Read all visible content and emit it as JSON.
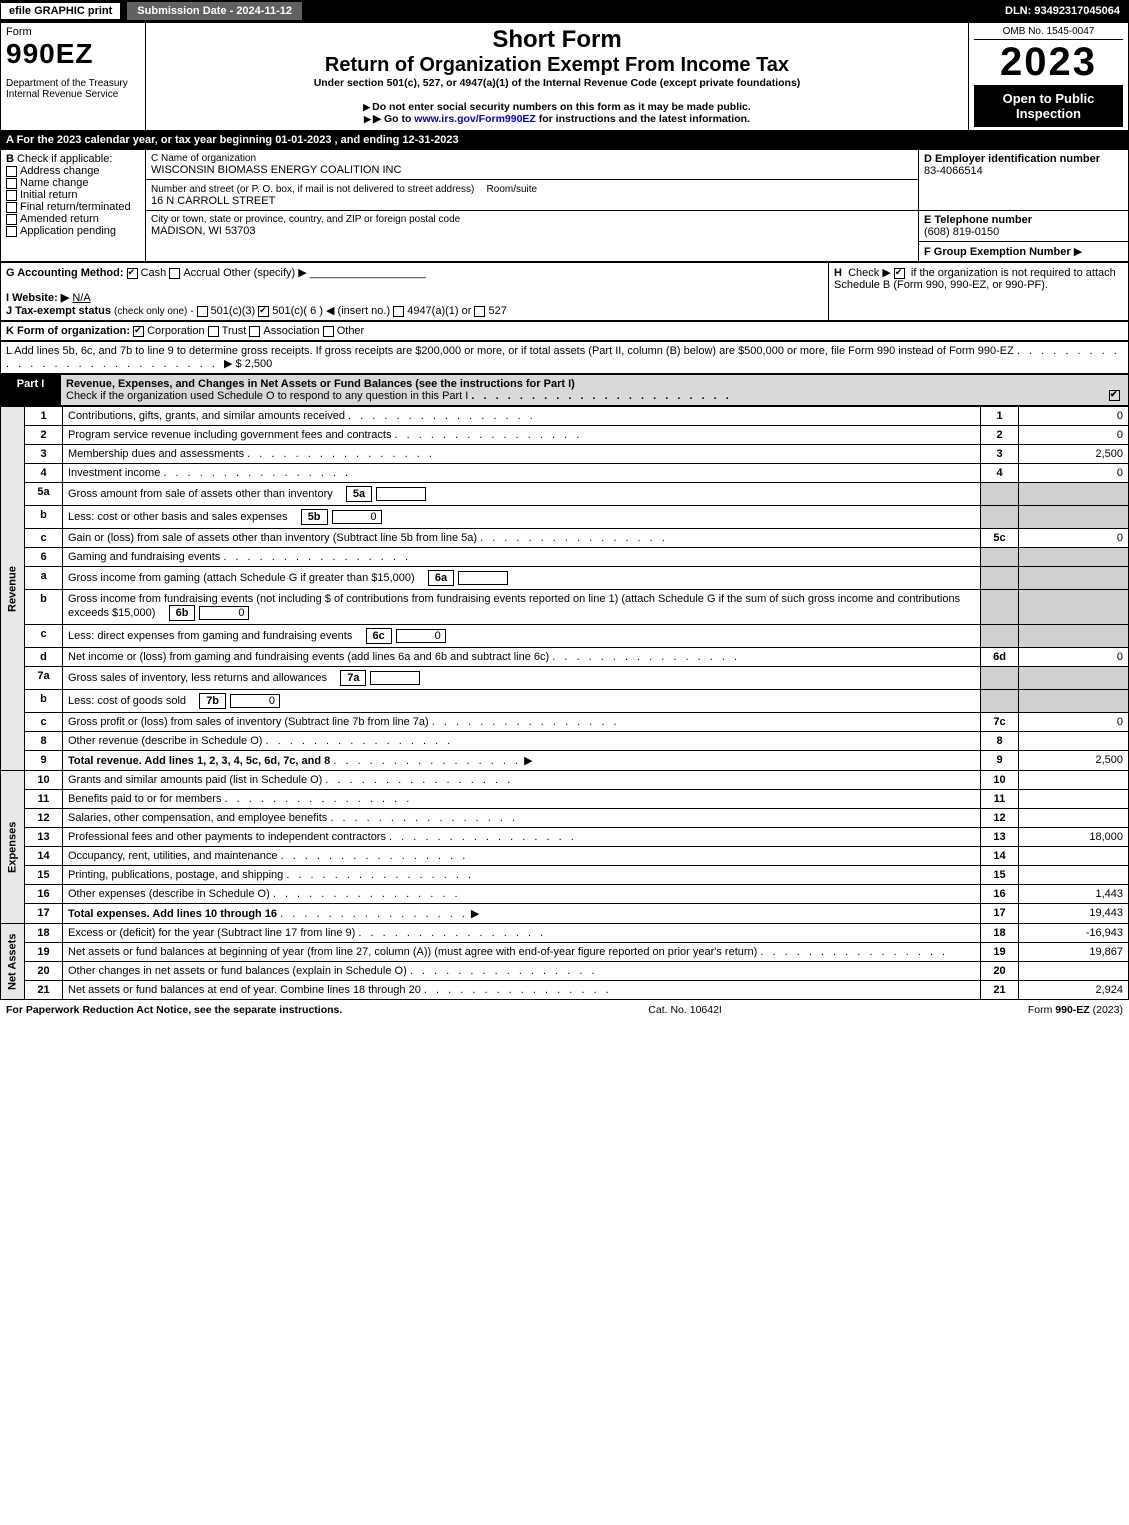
{
  "topbar": {
    "efile": "efile GRAPHIC print",
    "submission": "Submission Date - 2024-11-12",
    "dln": "DLN: 93492317045064"
  },
  "header": {
    "form_word": "Form",
    "form_number": "990EZ",
    "dept": "Department of the Treasury\nInternal Revenue Service",
    "short_form": "Short Form",
    "title": "Return of Organization Exempt From Income Tax",
    "subtitle": "Under section 501(c), 527, or 4947(a)(1) of the Internal Revenue Code (except private foundations)",
    "note1": "Do not enter social security numbers on this form as it may be made public.",
    "note2": "Go to www.irs.gov/Form990EZ for instructions and the latest information.",
    "omb": "OMB No. 1545-0047",
    "year": "2023",
    "inspection": "Open to Public Inspection"
  },
  "sectionA": {
    "text": "A  For the 2023 calendar year, or tax year beginning 01-01-2023 , and ending 12-31-2023"
  },
  "sectionB": {
    "label": "B",
    "check_label": "Check if applicable:",
    "opts": [
      "Address change",
      "Name change",
      "Initial return",
      "Final return/terminated",
      "Amended return",
      "Application pending"
    ]
  },
  "sectionC": {
    "label_name": "C Name of organization",
    "org_name": "WISCONSIN BIOMASS ENERGY COALITION INC",
    "label_addr": "Number and street (or P. O. box, if mail is not delivered to street address)",
    "room_label": "Room/suite",
    "street": "16 N CARROLL STREET",
    "label_city": "City or town, state or province, country, and ZIP or foreign postal code",
    "city": "MADISON, WI  53703"
  },
  "sectionD": {
    "label": "D Employer identification number",
    "value": "83-4066514"
  },
  "sectionE": {
    "label": "E Telephone number",
    "value": "(608) 819-0150"
  },
  "sectionF": {
    "label": "F Group Exemption Number",
    "arrow": "▶"
  },
  "sectionG": {
    "label": "G Accounting Method:",
    "cash": "Cash",
    "accrual": "Accrual",
    "other": "Other (specify) ▶"
  },
  "sectionH": {
    "label": "H",
    "text1": "Check ▶",
    "text2": "if the organization is not required to attach Schedule B (Form 990, 990-EZ, or 990-PF)."
  },
  "sectionI": {
    "label": "I Website: ▶",
    "value": "N/A"
  },
  "sectionJ": {
    "label": "J Tax-exempt status",
    "sub": "(check only one) -",
    "o1": "501(c)(3)",
    "o2": "501(c)( 6 ) ◀ (insert no.)",
    "o3": "4947(a)(1) or",
    "o4": "527"
  },
  "sectionK": {
    "label": "K Form of organization:",
    "corp": "Corporation",
    "trust": "Trust",
    "assoc": "Association",
    "other": "Other"
  },
  "sectionL": {
    "text": "L Add lines 5b, 6c, and 7b to line 9 to determine gross receipts. If gross receipts are $200,000 or more, or if total assets (Part II, column (B) below) are $500,000 or more, file Form 990 instead of Form 990-EZ",
    "amount_label": "▶ $ 2,500"
  },
  "part1": {
    "label": "Part I",
    "title": "Revenue, Expenses, and Changes in Net Assets or Fund Balances (see the instructions for Part I)",
    "check_note": "Check if the organization used Schedule O to respond to any question in this Part I"
  },
  "side_labels": {
    "revenue": "Revenue",
    "expenses": "Expenses",
    "netassets": "Net Assets"
  },
  "lines": [
    {
      "n": "1",
      "t": "Contributions, gifts, grants, and similar amounts received",
      "r": "1",
      "a": "0"
    },
    {
      "n": "2",
      "t": "Program service revenue including government fees and contracts",
      "r": "2",
      "a": "0"
    },
    {
      "n": "3",
      "t": "Membership dues and assessments",
      "r": "3",
      "a": "2,500"
    },
    {
      "n": "4",
      "t": "Investment income",
      "r": "4",
      "a": "0"
    },
    {
      "n": "5a",
      "t": "Gross amount from sale of assets other than inventory",
      "box": "5a",
      "boxval": ""
    },
    {
      "n": "b",
      "t": "Less: cost or other basis and sales expenses",
      "box": "5b",
      "boxval": "0"
    },
    {
      "n": "c",
      "t": "Gain or (loss) from sale of assets other than inventory (Subtract line 5b from line 5a)",
      "r": "5c",
      "a": "0"
    },
    {
      "n": "6",
      "t": "Gaming and fundraising events"
    },
    {
      "n": "a",
      "t": "Gross income from gaming (attach Schedule G if greater than $15,000)",
      "box": "6a",
      "boxval": ""
    },
    {
      "n": "b",
      "t": "Gross income from fundraising events (not including $                    of contributions from fundraising events reported on line 1) (attach Schedule G if the sum of such gross income and contributions exceeds $15,000)",
      "box": "6b",
      "boxval": "0"
    },
    {
      "n": "c",
      "t": "Less: direct expenses from gaming and fundraising events",
      "box": "6c",
      "boxval": "0"
    },
    {
      "n": "d",
      "t": "Net income or (loss) from gaming and fundraising events (add lines 6a and 6b and subtract line 6c)",
      "r": "6d",
      "a": "0"
    },
    {
      "n": "7a",
      "t": "Gross sales of inventory, less returns and allowances",
      "box": "7a",
      "boxval": ""
    },
    {
      "n": "b",
      "t": "Less: cost of goods sold",
      "box": "7b",
      "boxval": "0"
    },
    {
      "n": "c",
      "t": "Gross profit or (loss) from sales of inventory (Subtract line 7b from line 7a)",
      "r": "7c",
      "a": "0"
    },
    {
      "n": "8",
      "t": "Other revenue (describe in Schedule O)",
      "r": "8",
      "a": ""
    },
    {
      "n": "9",
      "t": "Total revenue. Add lines 1, 2, 3, 4, 5c, 6d, 7c, and 8",
      "r": "9",
      "a": "2,500",
      "bold": true,
      "arrow": true
    }
  ],
  "exp_lines": [
    {
      "n": "10",
      "t": "Grants and similar amounts paid (list in Schedule O)",
      "r": "10",
      "a": ""
    },
    {
      "n": "11",
      "t": "Benefits paid to or for members",
      "r": "11",
      "a": ""
    },
    {
      "n": "12",
      "t": "Salaries, other compensation, and employee benefits",
      "r": "12",
      "a": ""
    },
    {
      "n": "13",
      "t": "Professional fees and other payments to independent contractors",
      "r": "13",
      "a": "18,000"
    },
    {
      "n": "14",
      "t": "Occupancy, rent, utilities, and maintenance",
      "r": "14",
      "a": ""
    },
    {
      "n": "15",
      "t": "Printing, publications, postage, and shipping",
      "r": "15",
      "a": ""
    },
    {
      "n": "16",
      "t": "Other expenses (describe in Schedule O)",
      "r": "16",
      "a": "1,443"
    },
    {
      "n": "17",
      "t": "Total expenses. Add lines 10 through 16",
      "r": "17",
      "a": "19,443",
      "bold": true,
      "arrow": true
    }
  ],
  "na_lines": [
    {
      "n": "18",
      "t": "Excess or (deficit) for the year (Subtract line 17 from line 9)",
      "r": "18",
      "a": "-16,943"
    },
    {
      "n": "19",
      "t": "Net assets or fund balances at beginning of year (from line 27, column (A)) (must agree with end-of-year figure reported on prior year's return)",
      "r": "19",
      "a": "19,867"
    },
    {
      "n": "20",
      "t": "Other changes in net assets or fund balances (explain in Schedule O)",
      "r": "20",
      "a": ""
    },
    {
      "n": "21",
      "t": "Net assets or fund balances at end of year. Combine lines 18 through 20",
      "r": "21",
      "a": "2,924"
    }
  ],
  "footer": {
    "left": "For Paperwork Reduction Act Notice, see the separate instructions.",
    "mid": "Cat. No. 10642I",
    "right": "Form 990-EZ (2023)"
  }
}
